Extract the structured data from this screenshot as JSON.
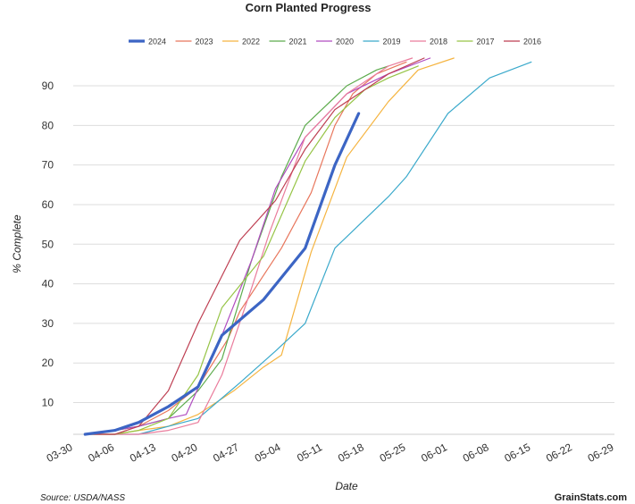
{
  "chart_data": {
    "type": "line",
    "title": "Corn Planted Progress",
    "xlabel": "Date",
    "ylabel": "% Complete",
    "source": "Source: USDA/NASS",
    "brand": "GrainStats.com",
    "x_ticks": [
      "03-30",
      "04-06",
      "04-13",
      "04-20",
      "04-27",
      "05-04",
      "05-11",
      "05-18",
      "05-25",
      "06-01",
      "06-08",
      "06-15",
      "06-22",
      "06-29"
    ],
    "x_range_days": [
      0,
      91
    ],
    "ylim": [
      2,
      97
    ],
    "y_ticks": [
      10,
      20,
      30,
      40,
      50,
      60,
      70,
      80,
      90
    ],
    "grid": true,
    "legend_position": "top",
    "series": [
      {
        "name": "2024",
        "color": "#3c65c4",
        "emphasis": true,
        "points": [
          [
            2,
            2
          ],
          [
            7,
            3
          ],
          [
            11,
            5
          ],
          [
            16,
            9
          ],
          [
            21,
            14
          ],
          [
            25,
            27
          ],
          [
            32,
            36
          ],
          [
            39,
            49
          ],
          [
            44,
            70
          ],
          [
            48,
            83
          ]
        ]
      },
      {
        "name": "2023",
        "color": "#e8765c",
        "emphasis": false,
        "points": [
          [
            2,
            2
          ],
          [
            7,
            3
          ],
          [
            11,
            4
          ],
          [
            16,
            8
          ],
          [
            21,
            14
          ],
          [
            26,
            26
          ],
          [
            28,
            33
          ],
          [
            35,
            49
          ],
          [
            40,
            63
          ],
          [
            44,
            80
          ],
          [
            47,
            88
          ],
          [
            51,
            93
          ],
          [
            56,
            96
          ]
        ]
      },
      {
        "name": "2022",
        "color": "#f5b440",
        "emphasis": false,
        "points": [
          [
            2,
            2
          ],
          [
            7,
            2
          ],
          [
            11,
            3
          ],
          [
            16,
            4
          ],
          [
            21,
            7
          ],
          [
            27,
            13
          ],
          [
            32,
            19
          ],
          [
            35,
            22
          ],
          [
            40,
            48
          ],
          [
            46,
            72
          ],
          [
            53,
            86
          ],
          [
            58,
            94
          ],
          [
            64,
            97
          ]
        ]
      },
      {
        "name": "2021",
        "color": "#5cab4c",
        "emphasis": false,
        "points": [
          [
            2,
            2
          ],
          [
            7,
            3
          ],
          [
            11,
            4
          ],
          [
            16,
            6
          ],
          [
            21,
            13
          ],
          [
            25,
            21
          ],
          [
            30,
            46
          ],
          [
            35,
            67
          ],
          [
            39,
            80
          ],
          [
            46,
            90
          ],
          [
            51,
            94
          ],
          [
            53,
            95
          ]
        ]
      },
      {
        "name": "2020",
        "color": "#b04cc0",
        "emphasis": false,
        "points": [
          [
            2,
            2
          ],
          [
            7,
            3
          ],
          [
            11,
            4
          ],
          [
            16,
            6
          ],
          [
            19,
            7
          ],
          [
            25,
            27
          ],
          [
            30,
            46
          ],
          [
            34,
            64
          ],
          [
            39,
            77
          ],
          [
            46,
            88
          ],
          [
            53,
            93
          ],
          [
            60,
            97
          ]
        ]
      },
      {
        "name": "2019",
        "color": "#3aa9cb",
        "emphasis": false,
        "points": [
          [
            2,
            2
          ],
          [
            7,
            2
          ],
          [
            11,
            2
          ],
          [
            16,
            4
          ],
          [
            21,
            6
          ],
          [
            28,
            15
          ],
          [
            34,
            23
          ],
          [
            39,
            30
          ],
          [
            44,
            49
          ],
          [
            53,
            62
          ],
          [
            56,
            67
          ],
          [
            63,
            83
          ],
          [
            70,
            92
          ],
          [
            77,
            96
          ]
        ]
      },
      {
        "name": "2018",
        "color": "#ea7c9c",
        "emphasis": false,
        "points": [
          [
            2,
            2
          ],
          [
            7,
            2
          ],
          [
            11,
            2
          ],
          [
            16,
            3
          ],
          [
            21,
            5
          ],
          [
            25,
            17
          ],
          [
            30,
            39
          ],
          [
            33,
            53
          ],
          [
            39,
            77
          ],
          [
            46,
            88
          ],
          [
            53,
            95
          ],
          [
            57,
            97
          ]
        ]
      },
      {
        "name": "2017",
        "color": "#96c446",
        "emphasis": false,
        "points": [
          [
            2,
            2
          ],
          [
            7,
            2
          ],
          [
            11,
            3
          ],
          [
            16,
            6
          ],
          [
            21,
            17
          ],
          [
            25,
            34
          ],
          [
            32,
            47
          ],
          [
            39,
            71
          ],
          [
            44,
            82
          ],
          [
            49,
            89
          ],
          [
            53,
            92
          ],
          [
            58,
            95
          ]
        ]
      },
      {
        "name": "2016",
        "color": "#be3f52",
        "emphasis": false,
        "points": [
          [
            2,
            2
          ],
          [
            7,
            2
          ],
          [
            11,
            4
          ],
          [
            16,
            13
          ],
          [
            21,
            30
          ],
          [
            28,
            51
          ],
          [
            34,
            61
          ],
          [
            39,
            74
          ],
          [
            44,
            84
          ],
          [
            49,
            89
          ],
          [
            53,
            93
          ],
          [
            59,
            97
          ]
        ]
      }
    ]
  }
}
